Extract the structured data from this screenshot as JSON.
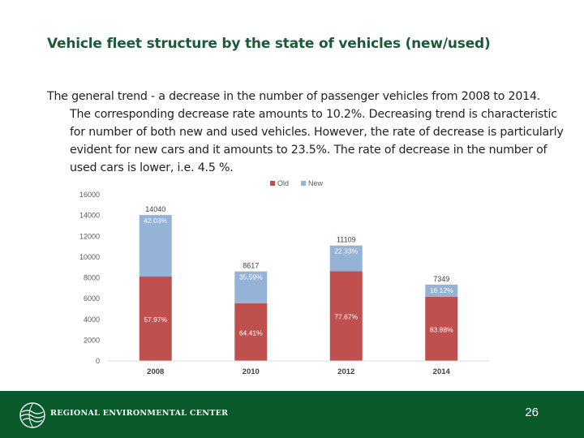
{
  "slide": {
    "title": "Vehicle fleet structure by the state of vehicles (new/used)",
    "body": "The general trend - a decrease in the number of passenger vehicles from 2008 to 2014. The corresponding decrease rate amounts to 10.2%. Decreasing trend is characteristic for number of both new and used vehicles. However, the rate of decrease is particularly evident for new cars and it amounts to 23.5%. The rate of decrease in the number of used cars is lower, i.e. 4.5 %."
  },
  "footer": {
    "org_name": "REGIONAL ENVIRONMENTAL CENTER",
    "page_number": "26",
    "logo_icon": "rec-globe-logo-icon"
  },
  "colors": {
    "old": "#c0504d",
    "new": "#95b3d7",
    "footer_bg": "#0a5a2c",
    "title": "#1d5a3a"
  },
  "chart_data": {
    "type": "bar",
    "stacked": true,
    "title": "",
    "xlabel": "",
    "ylabel": "",
    "categories": [
      "2008",
      "2010",
      "2012",
      "2014"
    ],
    "series": [
      {
        "name": "Old",
        "values": [
          8139,
          5550,
          8628,
          6164
        ],
        "labels": [
          "57.97%",
          "64.41%",
          "77.67%",
          "83.88%"
        ]
      },
      {
        "name": "New",
        "values": [
          5901,
          3067,
          2481,
          1185
        ],
        "labels": [
          "42.03%",
          "35.59%",
          "22.33%",
          "16.12%"
        ]
      }
    ],
    "totals": [
      "14040",
      "8617",
      "11109",
      "7349"
    ],
    "ylim": [
      0,
      16000
    ],
    "yticks": [
      "0",
      "2000",
      "4000",
      "6000",
      "8000",
      "10000",
      "12000",
      "14000",
      "16000"
    ],
    "legend": "top",
    "grid": false
  }
}
